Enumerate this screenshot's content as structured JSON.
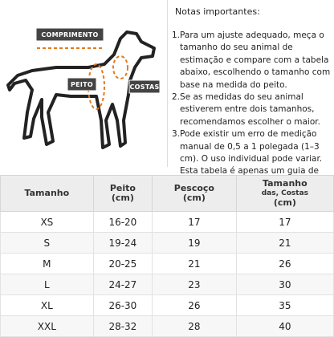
{
  "illustration": {
    "labels": {
      "length": "COMPRIMENTO",
      "chest": "PEITO",
      "back": "COSTAS"
    }
  },
  "notes": {
    "title": "Notas importantes:",
    "items": [
      {
        "number": "1.",
        "text": "Para um ajuste adequado, meça o tamanho do seu animal de estimação e compare com a tabela abaixo, escolhendo o tamanho com base na medida do peito."
      },
      {
        "number": "2.",
        "text": "Se as medidas do seu animal estiverem entre dois tamanhos, recomendamos escolher o maior."
      },
      {
        "number": "3.",
        "text": "Pode existir um erro de medição manual de 0,5 a 1 polegada (1–3 cm). O uso individual pode variar. Esta tabela é apenas um guia de tamanhos sugerido."
      }
    ]
  },
  "table": {
    "headers": [
      [
        "Tamanho"
      ],
      [
        "Peito",
        "(cm)"
      ],
      [
        "Pescoço",
        "(cm)"
      ],
      [
        "Tamanho",
        "das, Costas",
        "(cm)"
      ]
    ],
    "rows": [
      [
        "XS",
        "16-20",
        17,
        17
      ],
      [
        "S",
        "19-24",
        19,
        21
      ],
      [
        "M",
        "20-25",
        21,
        26
      ],
      [
        "L",
        "24-27",
        23,
        30
      ],
      [
        "XL",
        "26-30",
        26,
        35
      ],
      [
        "XXL",
        "28-32",
        28,
        40
      ]
    ]
  }
}
